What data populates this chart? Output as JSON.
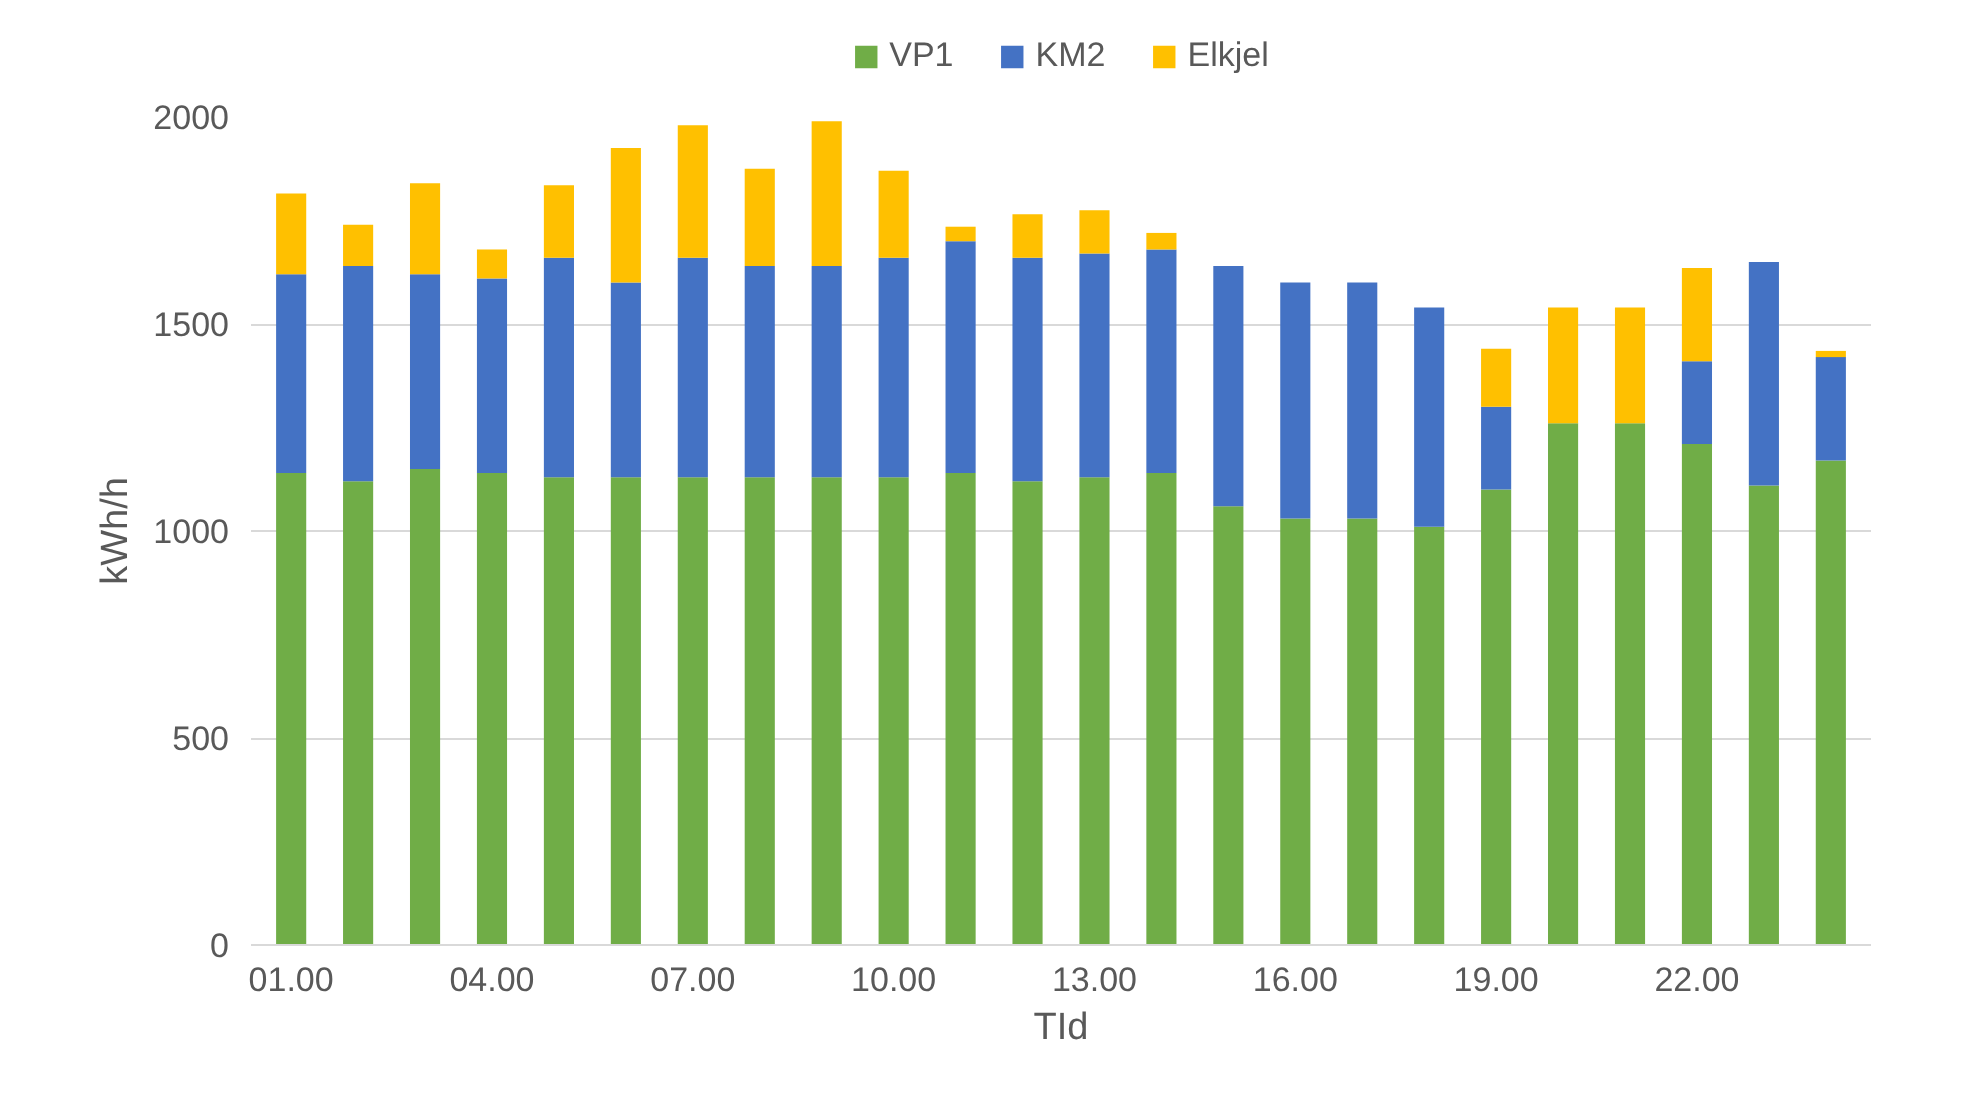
{
  "chart_data": {
    "type": "bar",
    "stacked": true,
    "xlabel": "TId",
    "ylabel": "kWh/h",
    "categories": [
      "01.00",
      null,
      null,
      "04.00",
      null,
      null,
      "07.00",
      null,
      null,
      "10.00",
      null,
      null,
      "13.00",
      null,
      null,
      "16.00",
      null,
      null,
      "19.00",
      null,
      null,
      "22.00",
      null,
      null
    ],
    "series": [
      {
        "name": "VP1",
        "color": "#70ad47",
        "values": [
          1140,
          1120,
          1150,
          1140,
          1130,
          1130,
          1130,
          1130,
          1130,
          1130,
          1140,
          1120,
          1130,
          1140,
          1060,
          1030,
          1030,
          1010,
          1100,
          1260,
          1260,
          1210,
          1110,
          1170
        ]
      },
      {
        "name": "KM2",
        "color": "#4472c4",
        "values": [
          480,
          520,
          470,
          470,
          530,
          470,
          530,
          510,
          510,
          530,
          560,
          540,
          540,
          540,
          580,
          570,
          570,
          530,
          200,
          0,
          0,
          200,
          540,
          250
        ]
      },
      {
        "name": "Elkjel",
        "color": "#ffc000",
        "values": [
          195,
          100,
          220,
          70,
          175,
          325,
          320,
          235,
          350,
          210,
          35,
          105,
          105,
          40,
          0,
          0,
          0,
          0,
          140,
          280,
          280,
          225,
          0,
          15
        ]
      }
    ],
    "ylim": [
      0,
      2000
    ],
    "yticks": [
      0,
      500,
      1000,
      1500,
      2000
    ],
    "grid": "y",
    "legend": "top"
  }
}
